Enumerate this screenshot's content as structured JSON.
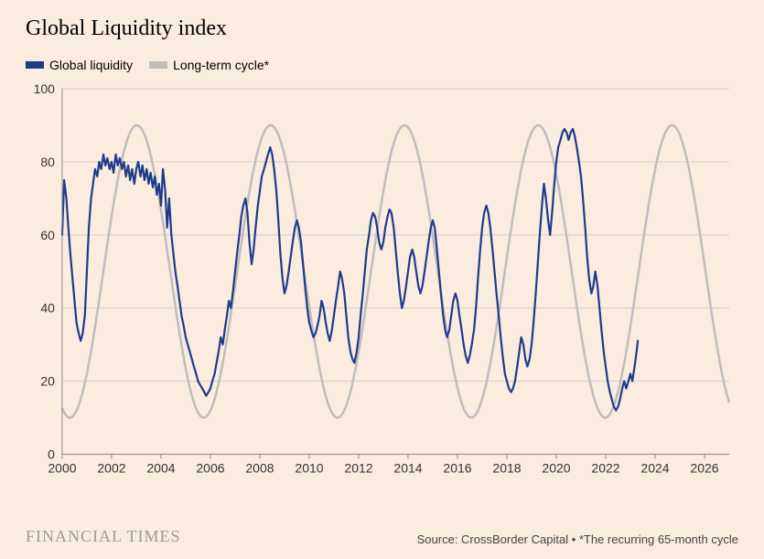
{
  "title": "Global Liquidity index",
  "legend": {
    "series1": {
      "label": "Global liquidity",
      "color": "#1f3b8a"
    },
    "series2": {
      "label": "Long-term cycle*",
      "color": "#bdbdbd"
    }
  },
  "footer": {
    "brand": "FINANCIAL TIMES",
    "source": "Source: CrossBorder Capital • *The recurring 65-month cycle"
  },
  "chart": {
    "type": "line",
    "background_color": "#fbece0",
    "gridline_color": "#cfcfcf",
    "axis_color": "#888888",
    "label_fontsize": 14,
    "title_fontsize": 24,
    "xlim": [
      2000,
      2027
    ],
    "ylim": [
      0,
      100
    ],
    "yticks": [
      0,
      20,
      40,
      60,
      80,
      100
    ],
    "xticks": [
      2000,
      2002,
      2004,
      2006,
      2008,
      2010,
      2012,
      2014,
      2016,
      2018,
      2020,
      2022,
      2024,
      2026
    ],
    "long_term_cycle": {
      "color": "#bdbdbd",
      "line_width": 2.5,
      "period_years": 5.4167,
      "phase_at_2000": 4.35,
      "amplitude": 40,
      "midline": 50,
      "end_x": 2027
    },
    "global_liquidity": {
      "color": "#1f3b8a",
      "line_width": 2.2,
      "end_x": 2023.3,
      "points": [
        [
          2000.0,
          60
        ],
        [
          2000.08,
          75
        ],
        [
          2000.17,
          70
        ],
        [
          2000.25,
          62
        ],
        [
          2000.33,
          55
        ],
        [
          2000.42,
          48
        ],
        [
          2000.5,
          42
        ],
        [
          2000.58,
          36
        ],
        [
          2000.67,
          33
        ],
        [
          2000.75,
          31
        ],
        [
          2000.83,
          33
        ],
        [
          2000.92,
          38
        ],
        [
          2001.0,
          50
        ],
        [
          2001.08,
          62
        ],
        [
          2001.17,
          70
        ],
        [
          2001.25,
          74
        ],
        [
          2001.33,
          78
        ],
        [
          2001.42,
          76
        ],
        [
          2001.5,
          80
        ],
        [
          2001.58,
          78
        ],
        [
          2001.67,
          82
        ],
        [
          2001.75,
          79
        ],
        [
          2001.83,
          81
        ],
        [
          2001.92,
          78
        ],
        [
          2002.0,
          80
        ],
        [
          2002.08,
          77
        ],
        [
          2002.17,
          82
        ],
        [
          2002.25,
          79
        ],
        [
          2002.33,
          81
        ],
        [
          2002.42,
          78
        ],
        [
          2002.5,
          80
        ],
        [
          2002.58,
          76
        ],
        [
          2002.67,
          79
        ],
        [
          2002.75,
          75
        ],
        [
          2002.83,
          78
        ],
        [
          2002.92,
          74
        ],
        [
          2003.0,
          78
        ],
        [
          2003.08,
          80
        ],
        [
          2003.17,
          76
        ],
        [
          2003.25,
          79
        ],
        [
          2003.33,
          75
        ],
        [
          2003.42,
          78
        ],
        [
          2003.5,
          74
        ],
        [
          2003.58,
          77
        ],
        [
          2003.67,
          73
        ],
        [
          2003.75,
          76
        ],
        [
          2003.83,
          71
        ],
        [
          2003.92,
          74
        ],
        [
          2004.0,
          68
        ],
        [
          2004.08,
          78
        ],
        [
          2004.17,
          72
        ],
        [
          2004.25,
          62
        ],
        [
          2004.33,
          70
        ],
        [
          2004.42,
          60
        ],
        [
          2004.5,
          55
        ],
        [
          2004.58,
          50
        ],
        [
          2004.67,
          46
        ],
        [
          2004.75,
          42
        ],
        [
          2004.83,
          38
        ],
        [
          2004.92,
          35
        ],
        [
          2005.0,
          32
        ],
        [
          2005.08,
          30
        ],
        [
          2005.17,
          28
        ],
        [
          2005.25,
          26
        ],
        [
          2005.33,
          24
        ],
        [
          2005.42,
          22
        ],
        [
          2005.5,
          20
        ],
        [
          2005.58,
          19
        ],
        [
          2005.67,
          18
        ],
        [
          2005.75,
          17
        ],
        [
          2005.83,
          16
        ],
        [
          2005.92,
          17
        ],
        [
          2006.0,
          18
        ],
        [
          2006.08,
          20
        ],
        [
          2006.17,
          22
        ],
        [
          2006.25,
          25
        ],
        [
          2006.33,
          28
        ],
        [
          2006.42,
          32
        ],
        [
          2006.5,
          30
        ],
        [
          2006.58,
          34
        ],
        [
          2006.67,
          38
        ],
        [
          2006.75,
          42
        ],
        [
          2006.83,
          40
        ],
        [
          2006.92,
          45
        ],
        [
          2007.0,
          50
        ],
        [
          2007.08,
          55
        ],
        [
          2007.17,
          60
        ],
        [
          2007.25,
          65
        ],
        [
          2007.33,
          68
        ],
        [
          2007.42,
          70
        ],
        [
          2007.5,
          66
        ],
        [
          2007.58,
          58
        ],
        [
          2007.67,
          52
        ],
        [
          2007.75,
          56
        ],
        [
          2007.83,
          62
        ],
        [
          2007.92,
          68
        ],
        [
          2008.0,
          72
        ],
        [
          2008.08,
          76
        ],
        [
          2008.17,
          78
        ],
        [
          2008.25,
          80
        ],
        [
          2008.33,
          82
        ],
        [
          2008.42,
          84
        ],
        [
          2008.5,
          82
        ],
        [
          2008.58,
          78
        ],
        [
          2008.67,
          72
        ],
        [
          2008.75,
          64
        ],
        [
          2008.83,
          55
        ],
        [
          2008.92,
          48
        ],
        [
          2009.0,
          44
        ],
        [
          2009.08,
          46
        ],
        [
          2009.17,
          50
        ],
        [
          2009.25,
          54
        ],
        [
          2009.33,
          58
        ],
        [
          2009.42,
          62
        ],
        [
          2009.5,
          64
        ],
        [
          2009.58,
          62
        ],
        [
          2009.67,
          58
        ],
        [
          2009.75,
          52
        ],
        [
          2009.83,
          46
        ],
        [
          2009.92,
          40
        ],
        [
          2010.0,
          36
        ],
        [
          2010.08,
          34
        ],
        [
          2010.17,
          32
        ],
        [
          2010.25,
          33
        ],
        [
          2010.33,
          35
        ],
        [
          2010.42,
          38
        ],
        [
          2010.5,
          42
        ],
        [
          2010.58,
          40
        ],
        [
          2010.67,
          36
        ],
        [
          2010.75,
          33
        ],
        [
          2010.83,
          31
        ],
        [
          2010.92,
          34
        ],
        [
          2011.0,
          38
        ],
        [
          2011.08,
          42
        ],
        [
          2011.17,
          46
        ],
        [
          2011.25,
          50
        ],
        [
          2011.33,
          48
        ],
        [
          2011.42,
          44
        ],
        [
          2011.5,
          38
        ],
        [
          2011.58,
          32
        ],
        [
          2011.67,
          28
        ],
        [
          2011.75,
          26
        ],
        [
          2011.83,
          25
        ],
        [
          2011.92,
          28
        ],
        [
          2012.0,
          32
        ],
        [
          2012.08,
          38
        ],
        [
          2012.17,
          44
        ],
        [
          2012.25,
          50
        ],
        [
          2012.33,
          56
        ],
        [
          2012.42,
          60
        ],
        [
          2012.5,
          64
        ],
        [
          2012.58,
          66
        ],
        [
          2012.67,
          65
        ],
        [
          2012.75,
          62
        ],
        [
          2012.83,
          58
        ],
        [
          2012.92,
          56
        ],
        [
          2013.0,
          58
        ],
        [
          2013.08,
          62
        ],
        [
          2013.17,
          65
        ],
        [
          2013.25,
          67
        ],
        [
          2013.33,
          66
        ],
        [
          2013.42,
          62
        ],
        [
          2013.5,
          56
        ],
        [
          2013.58,
          50
        ],
        [
          2013.67,
          44
        ],
        [
          2013.75,
          40
        ],
        [
          2013.83,
          42
        ],
        [
          2013.92,
          46
        ],
        [
          2014.0,
          50
        ],
        [
          2014.08,
          54
        ],
        [
          2014.17,
          56
        ],
        [
          2014.25,
          54
        ],
        [
          2014.33,
          50
        ],
        [
          2014.42,
          46
        ],
        [
          2014.5,
          44
        ],
        [
          2014.58,
          46
        ],
        [
          2014.67,
          50
        ],
        [
          2014.75,
          54
        ],
        [
          2014.83,
          58
        ],
        [
          2014.92,
          62
        ],
        [
          2015.0,
          64
        ],
        [
          2015.08,
          62
        ],
        [
          2015.17,
          56
        ],
        [
          2015.25,
          50
        ],
        [
          2015.33,
          44
        ],
        [
          2015.42,
          38
        ],
        [
          2015.5,
          34
        ],
        [
          2015.58,
          32
        ],
        [
          2015.67,
          34
        ],
        [
          2015.75,
          38
        ],
        [
          2015.83,
          42
        ],
        [
          2015.92,
          44
        ],
        [
          2016.0,
          42
        ],
        [
          2016.08,
          38
        ],
        [
          2016.17,
          34
        ],
        [
          2016.25,
          30
        ],
        [
          2016.33,
          27
        ],
        [
          2016.42,
          25
        ],
        [
          2016.5,
          27
        ],
        [
          2016.58,
          30
        ],
        [
          2016.67,
          34
        ],
        [
          2016.75,
          40
        ],
        [
          2016.83,
          48
        ],
        [
          2016.92,
          56
        ],
        [
          2017.0,
          62
        ],
        [
          2017.08,
          66
        ],
        [
          2017.17,
          68
        ],
        [
          2017.25,
          66
        ],
        [
          2017.33,
          62
        ],
        [
          2017.42,
          56
        ],
        [
          2017.5,
          50
        ],
        [
          2017.58,
          44
        ],
        [
          2017.67,
          38
        ],
        [
          2017.75,
          32
        ],
        [
          2017.83,
          27
        ],
        [
          2017.92,
          22
        ],
        [
          2018.0,
          20
        ],
        [
          2018.08,
          18
        ],
        [
          2018.17,
          17
        ],
        [
          2018.25,
          18
        ],
        [
          2018.33,
          20
        ],
        [
          2018.42,
          24
        ],
        [
          2018.5,
          28
        ],
        [
          2018.58,
          32
        ],
        [
          2018.67,
          30
        ],
        [
          2018.75,
          26
        ],
        [
          2018.83,
          24
        ],
        [
          2018.92,
          26
        ],
        [
          2019.0,
          30
        ],
        [
          2019.08,
          36
        ],
        [
          2019.17,
          44
        ],
        [
          2019.25,
          52
        ],
        [
          2019.33,
          60
        ],
        [
          2019.42,
          68
        ],
        [
          2019.5,
          74
        ],
        [
          2019.58,
          70
        ],
        [
          2019.67,
          64
        ],
        [
          2019.75,
          60
        ],
        [
          2019.83,
          66
        ],
        [
          2019.92,
          74
        ],
        [
          2020.0,
          80
        ],
        [
          2020.08,
          84
        ],
        [
          2020.17,
          86
        ],
        [
          2020.25,
          88
        ],
        [
          2020.33,
          89
        ],
        [
          2020.42,
          88
        ],
        [
          2020.5,
          86
        ],
        [
          2020.58,
          88
        ],
        [
          2020.67,
          89
        ],
        [
          2020.75,
          87
        ],
        [
          2020.83,
          84
        ],
        [
          2020.92,
          80
        ],
        [
          2021.0,
          76
        ],
        [
          2021.08,
          70
        ],
        [
          2021.17,
          62
        ],
        [
          2021.25,
          54
        ],
        [
          2021.33,
          48
        ],
        [
          2021.42,
          44
        ],
        [
          2021.5,
          46
        ],
        [
          2021.58,
          50
        ],
        [
          2021.67,
          46
        ],
        [
          2021.75,
          40
        ],
        [
          2021.83,
          34
        ],
        [
          2021.92,
          28
        ],
        [
          2022.0,
          24
        ],
        [
          2022.08,
          20
        ],
        [
          2022.17,
          17
        ],
        [
          2022.25,
          15
        ],
        [
          2022.33,
          13
        ],
        [
          2022.42,
          12
        ],
        [
          2022.5,
          13
        ],
        [
          2022.58,
          15
        ],
        [
          2022.67,
          18
        ],
        [
          2022.75,
          20
        ],
        [
          2022.83,
          18
        ],
        [
          2022.92,
          20
        ],
        [
          2023.0,
          22
        ],
        [
          2023.08,
          20
        ],
        [
          2023.17,
          24
        ],
        [
          2023.25,
          28
        ],
        [
          2023.3,
          31
        ]
      ]
    }
  }
}
